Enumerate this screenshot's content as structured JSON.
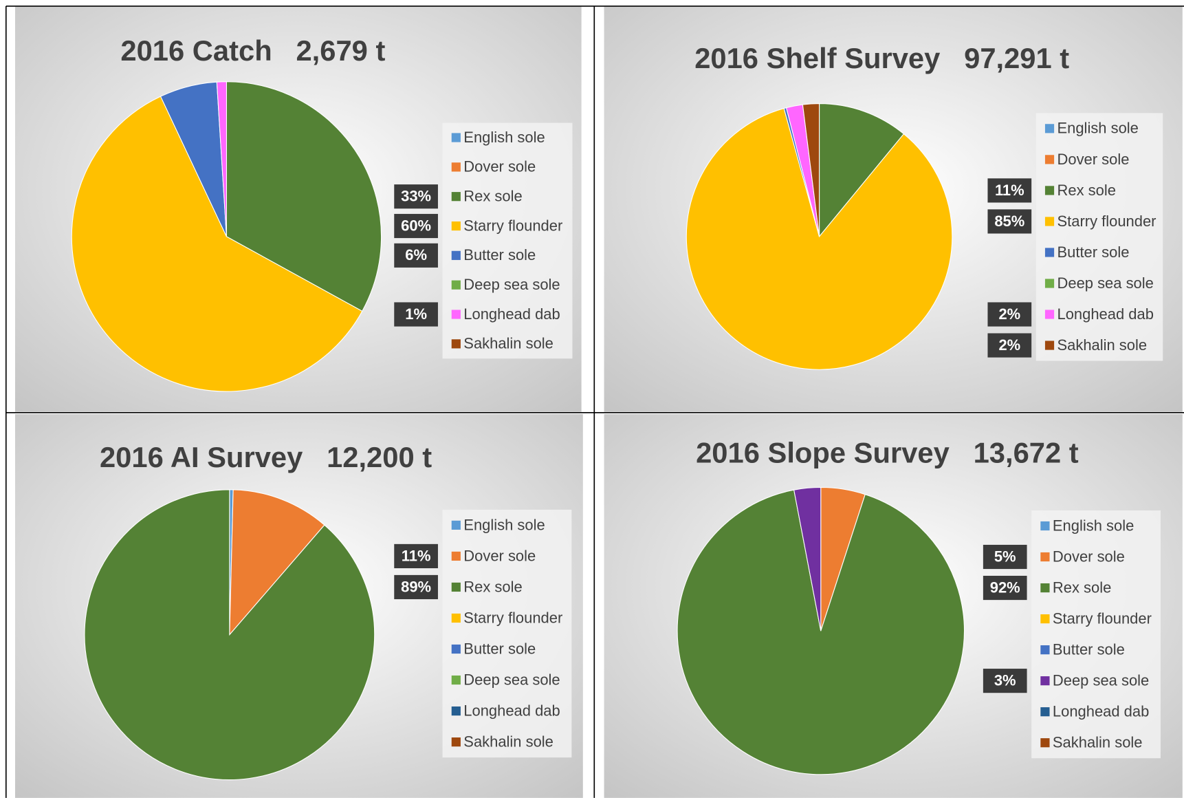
{
  "chart_data": [
    {
      "type": "pie",
      "title": "2016 Catch   2,679 t",
      "categories": [
        "English sole",
        "Dover sole",
        "Rex sole",
        "Starry flounder",
        "Butter sole",
        "Deep sea sole",
        "Longhead dab",
        "Sakhalin sole"
      ],
      "values": [
        0,
        0,
        33,
        60,
        6,
        0,
        1,
        0
      ],
      "value_labels": [
        null,
        null,
        "33%",
        "60%",
        "6%",
        null,
        "1%",
        null
      ],
      "colors": [
        "#5b9bd5",
        "#ed7d31",
        "#548235",
        "#ffc000",
        "#4472c4",
        "#70ad47",
        "#ff66ff",
        "#9e480e"
      ]
    },
    {
      "type": "pie",
      "title": "2016 Shelf Survey   97,291 t",
      "categories": [
        "English sole",
        "Dover sole",
        "Rex sole",
        "Starry flounder",
        "Butter sole",
        "Deep sea sole",
        "Longhead dab",
        "Sakhalin sole"
      ],
      "values": [
        0,
        0,
        11,
        85,
        0.3,
        0,
        2,
        2
      ],
      "value_labels": [
        null,
        null,
        "11%",
        "85%",
        null,
        null,
        "2%",
        "2%"
      ],
      "colors": [
        "#5b9bd5",
        "#ed7d31",
        "#548235",
        "#ffc000",
        "#4472c4",
        "#70ad47",
        "#ff66ff",
        "#9e480e"
      ]
    },
    {
      "type": "pie",
      "title": "2016 AI Survey   12,200 t",
      "categories": [
        "English sole",
        "Dover sole",
        "Rex sole",
        "Starry flounder",
        "Butter sole",
        "Deep sea sole",
        "Longhead dab",
        "Sakhalin sole"
      ],
      "values": [
        0.4,
        11,
        89,
        0,
        0,
        0,
        0,
        0
      ],
      "value_labels": [
        null,
        "11%",
        "89%",
        null,
        null,
        null,
        null,
        null
      ],
      "colors": [
        "#5b9bd5",
        "#ed7d31",
        "#548235",
        "#ffc000",
        "#4472c4",
        "#70ad47",
        "#255e91",
        "#9e480e"
      ]
    },
    {
      "type": "pie",
      "title": "2016 Slope Survey   13,672 t",
      "categories": [
        "English sole",
        "Dover sole",
        "Rex sole",
        "Starry flounder",
        "Butter sole",
        "Deep sea sole",
        "Longhead dab",
        "Sakhalin sole"
      ],
      "values": [
        0,
        5,
        92,
        0,
        0,
        3,
        0,
        0
      ],
      "value_labels": [
        null,
        "5%",
        "92%",
        null,
        null,
        "3%",
        null,
        null
      ],
      "colors": [
        "#5b9bd5",
        "#ed7d31",
        "#548235",
        "#ffc000",
        "#4472c4",
        "#7030a0",
        "#255e91",
        "#9e480e"
      ]
    }
  ]
}
